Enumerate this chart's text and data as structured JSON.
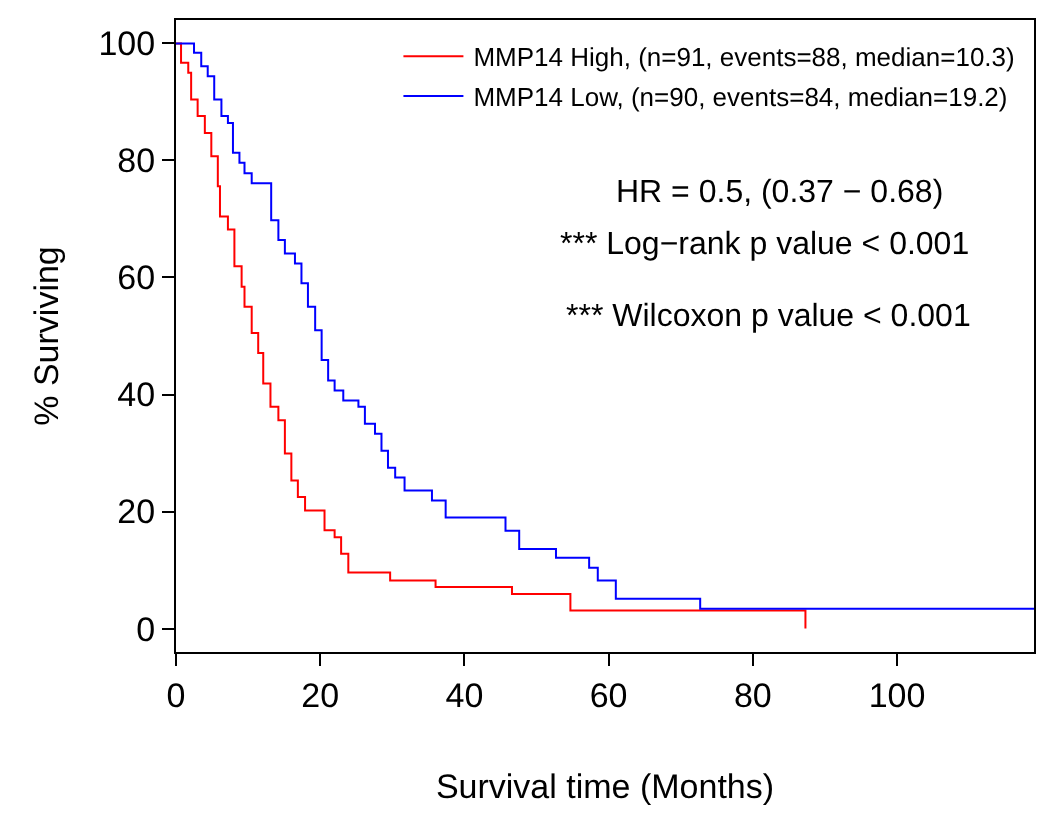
{
  "chart_data": {
    "type": "step",
    "xlabel": "Survival time (Months)",
    "ylabel": "% Surviving",
    "xlim": [
      0,
      119
    ],
    "ylim": [
      -4,
      104
    ],
    "xticks": [
      0,
      20,
      40,
      60,
      80,
      100
    ],
    "yticks": [
      0,
      20,
      40,
      60,
      80,
      100
    ],
    "grid": false,
    "legend": "top right",
    "marker": "none",
    "line_style": "solid",
    "series": [
      {
        "name": "MMP14 High, (n=91, events=88, median=10.3)",
        "color": "#ff0000",
        "x": [
          0,
          0.7,
          1.7,
          2.1,
          3.0,
          4.0,
          4.9,
          5.8,
          6.1,
          7.2,
          8.1,
          9.1,
          9.5,
          10.5,
          11.4,
          12.1,
          13.1,
          14.2,
          15.1,
          16.0,
          16.9,
          17.9,
          20.6,
          22.0,
          22.9,
          23.9,
          29.7,
          36.0,
          46.6,
          54.7,
          87.3
        ],
        "values": [
          100,
          96.7,
          95,
          90.4,
          87.6,
          84.7,
          80.7,
          75.6,
          70.4,
          68.2,
          61.9,
          58.4,
          55,
          50.5,
          47.1,
          41.9,
          37.9,
          35.6,
          29.9,
          25.3,
          22.5,
          20.2,
          16.8,
          15.6,
          12.8,
          9.6,
          8.2,
          7.1,
          5.9,
          3.1,
          0
        ]
      },
      {
        "name": "MMP14 Low, (n=90, events=84, median=19.2)",
        "color": "#0000ff",
        "x": [
          0,
          2.5,
          3.5,
          4.4,
          5.3,
          6.3,
          7.2,
          7.9,
          8.8,
          9.5,
          10.5,
          13.2,
          14.2,
          15.1,
          16.5,
          17.4,
          18.3,
          19.3,
          20.2,
          21.1,
          22.0,
          23.2,
          25.3,
          26.2,
          27.6,
          28.5,
          29.4,
          30.4,
          31.7,
          35.5,
          37.4,
          45.7,
          47.6,
          52.7,
          57.3,
          58.5,
          61.0,
          72.7,
          119
        ],
        "values": [
          100,
          98.4,
          96.1,
          94.4,
          90.4,
          87.6,
          86.4,
          81.3,
          79.6,
          77.8,
          76.1,
          69.8,
          66.4,
          64.1,
          62.4,
          59,
          55,
          51,
          45.9,
          42.4,
          40.7,
          39,
          37.9,
          35,
          33.3,
          30.4,
          27.5,
          25.8,
          23.6,
          21.9,
          19,
          16.7,
          13.6,
          12.1,
          10.4,
          8.2,
          5.1,
          3.4,
          3.4
        ]
      }
    ],
    "annotations": [
      "HR = 0.5, (0.37 − 0.68)",
      "*** Log−rank p value < 0.001",
      "*** Wilcoxon p value < 0.001"
    ]
  }
}
